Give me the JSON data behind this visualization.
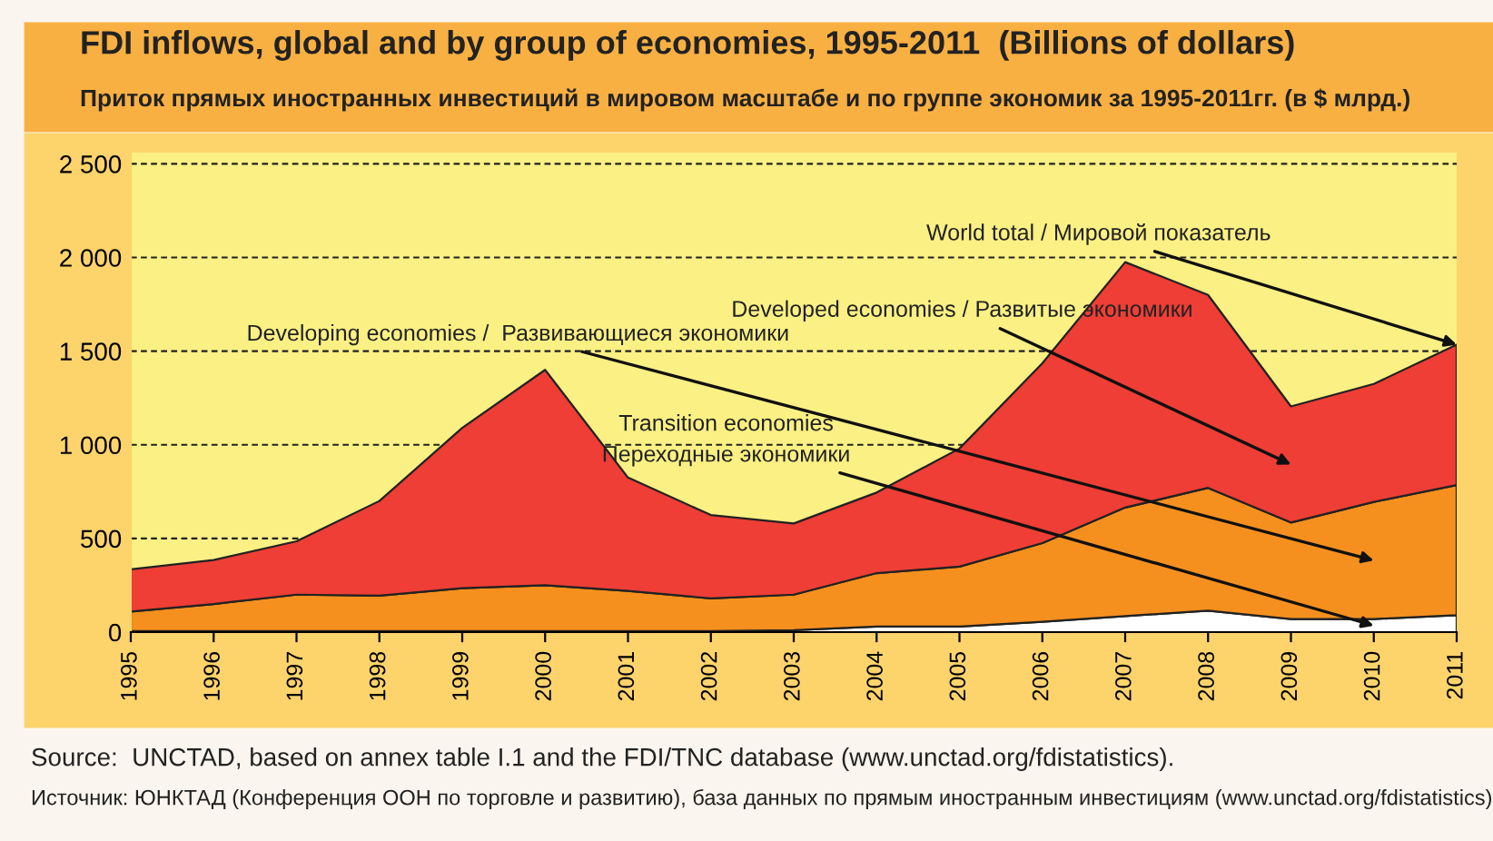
{
  "chart_data": {
    "type": "area",
    "stacked": true,
    "title": "FDI inflows, global and by group of economies, 1995-2011  (Billions of dollars)",
    "subtitle": "Приток прямых иностранных инвестиций в мировом масштабе и по группе экономик за 1995-2011гг. (в $ млрд.)",
    "categories": [
      "1995",
      "1996",
      "1997",
      "1998",
      "1999",
      "2000",
      "2001",
      "2002",
      "2003",
      "2004",
      "2005",
      "2006",
      "2007",
      "2008",
      "2009",
      "2010",
      "2011"
    ],
    "series": [
      {
        "name": "Transition economies\nПереходные экономики",
        "color": "#ffffff",
        "values": [
          5,
          5,
          5,
          5,
          5,
          5,
          5,
          5,
          10,
          30,
          30,
          55,
          85,
          115,
          70,
          70,
          90
        ]
      },
      {
        "name": "Developing economies /  Развивающиеся экономики",
        "color": "#f5901e",
        "values": [
          105,
          145,
          195,
          190,
          230,
          245,
          215,
          175,
          190,
          285,
          320,
          420,
          580,
          655,
          515,
          625,
          695
        ]
      },
      {
        "name": "Developed economies / Развитые экономики",
        "color": "#ee3e36",
        "values": [
          225,
          235,
          285,
          505,
          855,
          1150,
          605,
          445,
          380,
          430,
          630,
          960,
          1310,
          1030,
          620,
          630,
          750
        ]
      }
    ],
    "ylim": [
      0,
      2560
    ],
    "yticks": [
      0,
      500,
      {
        "value": 1000,
        "label": "1 000"
      },
      {
        "value": 1500,
        "label": "1 500"
      },
      {
        "value": 2000,
        "label": "2 000"
      },
      {
        "value": 2500,
        "label": "2 500"
      }
    ],
    "grid": "y",
    "legend": false,
    "annotations": [
      {
        "text": "World total / Мировой показатель",
        "x": "2011",
        "y": 1535
      },
      "Source:  UNCTAD, based on annex table I.1 and the FDI/TNC database (www.unctad.org/fdistatistics).",
      "Источник: ЮНКТАД (Конференция ООН по торговле и развитию), база данных по прямым иностранным инвестициям (www.unctad.org/fdistatistics)"
    ]
  }
}
